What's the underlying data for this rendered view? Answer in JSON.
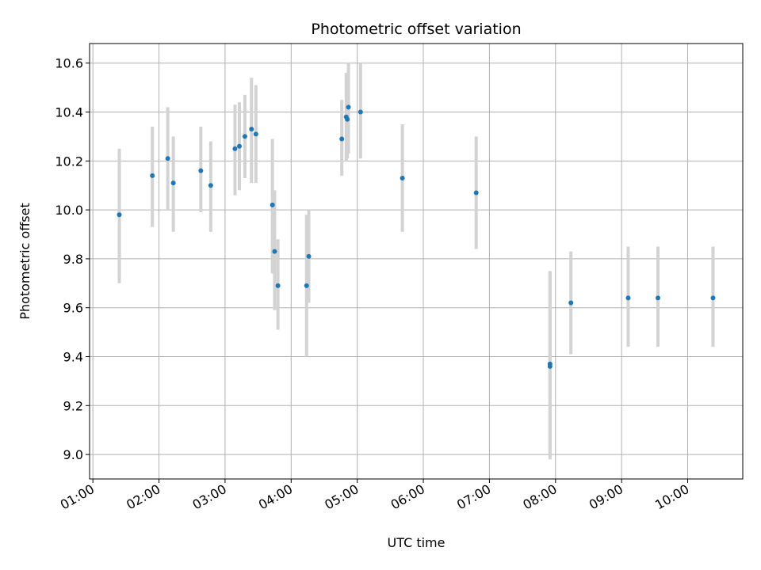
{
  "chart_data": {
    "type": "scatter",
    "title": "Photometric offset variation",
    "xlabel": "UTC time",
    "ylabel": "Photometric offset",
    "xlim": [
      "00:57",
      "10:50"
    ],
    "ylim": [
      8.9,
      10.68
    ],
    "x_ticks": [
      "01:00",
      "02:00",
      "03:00",
      "04:00",
      "05:00",
      "06:00",
      "07:00",
      "08:00",
      "09:00",
      "10:00"
    ],
    "y_ticks": [
      9.0,
      9.2,
      9.4,
      9.6,
      9.8,
      10.0,
      10.2,
      10.4,
      10.6
    ],
    "grid": true,
    "point_color": "#1f77b4",
    "errorbar_color": "#d3d3d3",
    "points": [
      {
        "x": "01:24",
        "y": 9.98,
        "ylow": 9.7,
        "yhigh": 10.25
      },
      {
        "x": "01:54",
        "y": 10.14,
        "ylow": 9.93,
        "yhigh": 10.34
      },
      {
        "x": "02:08",
        "y": 10.21,
        "ylow": 10.0,
        "yhigh": 10.42
      },
      {
        "x": "02:13",
        "y": 10.11,
        "ylow": 9.91,
        "yhigh": 10.3
      },
      {
        "x": "02:38",
        "y": 10.16,
        "ylow": 9.99,
        "yhigh": 10.34
      },
      {
        "x": "02:47",
        "y": 10.1,
        "ylow": 9.91,
        "yhigh": 10.28
      },
      {
        "x": "03:09",
        "y": 10.25,
        "ylow": 10.06,
        "yhigh": 10.43
      },
      {
        "x": "03:13",
        "y": 10.26,
        "ylow": 10.08,
        "yhigh": 10.44
      },
      {
        "x": "03:18",
        "y": 10.3,
        "ylow": 10.13,
        "yhigh": 10.47
      },
      {
        "x": "03:24",
        "y": 10.33,
        "ylow": 10.11,
        "yhigh": 10.54
      },
      {
        "x": "03:28",
        "y": 10.31,
        "ylow": 10.11,
        "yhigh": 10.51
      },
      {
        "x": "03:43",
        "y": 10.02,
        "ylow": 9.74,
        "yhigh": 10.29
      },
      {
        "x": "03:45",
        "y": 9.83,
        "ylow": 9.59,
        "yhigh": 10.08
      },
      {
        "x": "03:48",
        "y": 9.69,
        "ylow": 9.51,
        "yhigh": 9.88
      },
      {
        "x": "04:14",
        "y": 9.69,
        "ylow": 9.4,
        "yhigh": 9.98
      },
      {
        "x": "04:16",
        "y": 9.81,
        "ylow": 9.62,
        "yhigh": 10.0
      },
      {
        "x": "04:46",
        "y": 10.29,
        "ylow": 10.14,
        "yhigh": 10.45
      },
      {
        "x": "04:50",
        "y": 10.38,
        "ylow": 10.2,
        "yhigh": 10.56
      },
      {
        "x": "04:51",
        "y": 10.37,
        "ylow": 10.21,
        "yhigh": 10.52
      },
      {
        "x": "04:52",
        "y": 10.42,
        "ylow": 10.23,
        "yhigh": 10.6
      },
      {
        "x": "05:03",
        "y": 10.4,
        "ylow": 10.21,
        "yhigh": 10.6
      },
      {
        "x": "05:41",
        "y": 10.13,
        "ylow": 9.91,
        "yhigh": 10.35
      },
      {
        "x": "06:48",
        "y": 10.07,
        "ylow": 9.84,
        "yhigh": 10.3
      },
      {
        "x": "07:55",
        "y": 9.36,
        "ylow": 8.98,
        "yhigh": 9.75
      },
      {
        "x": "07:55",
        "y": 9.37,
        "ylow": 8.99,
        "yhigh": 9.75
      },
      {
        "x": "08:14",
        "y": 9.62,
        "ylow": 9.41,
        "yhigh": 9.83
      },
      {
        "x": "09:06",
        "y": 9.64,
        "ylow": 9.44,
        "yhigh": 9.85
      },
      {
        "x": "09:33",
        "y": 9.64,
        "ylow": 9.44,
        "yhigh": 9.85
      },
      {
        "x": "10:23",
        "y": 9.64,
        "ylow": 9.44,
        "yhigh": 9.85
      }
    ]
  }
}
